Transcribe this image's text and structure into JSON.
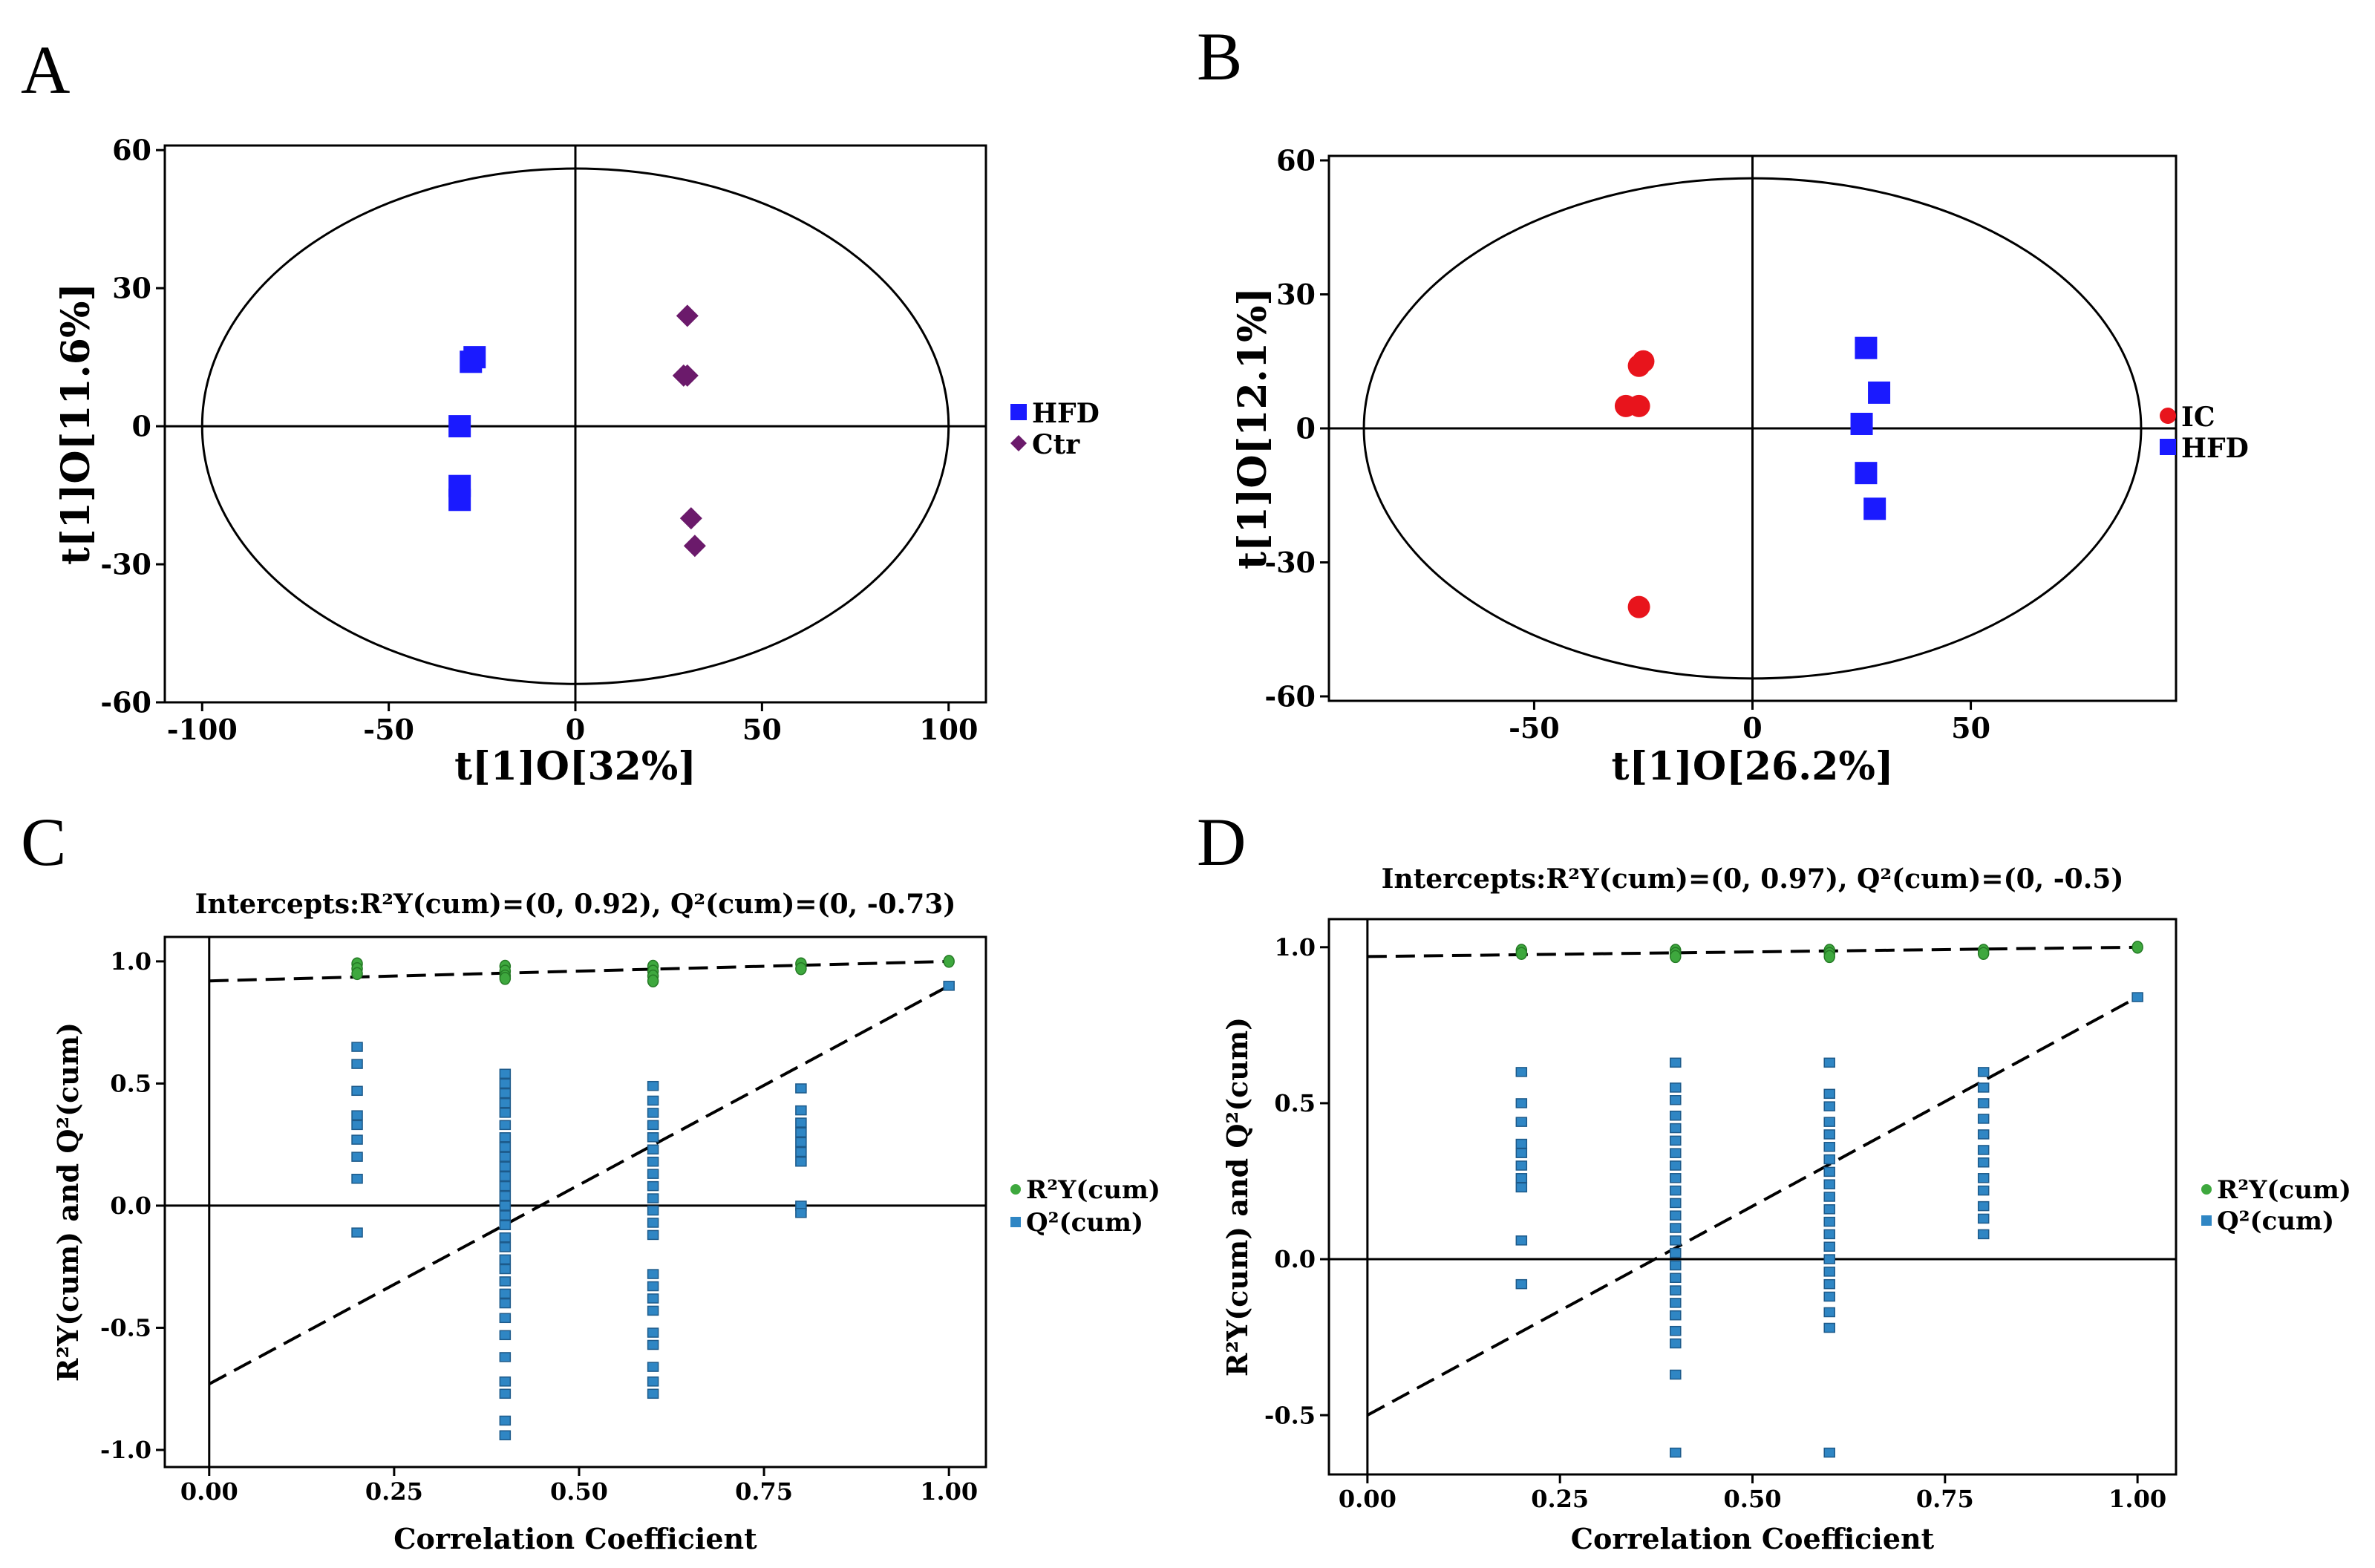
{
  "panels": {
    "A": "A",
    "B": "B",
    "C": "C",
    "D": "D"
  },
  "colors": {
    "hfd": "#1a1aff",
    "ctr": "#6b1a6b",
    "ic": "#e8141c",
    "r2": "#3ea83e",
    "q2": "#2f86c4",
    "axis": "#000000"
  },
  "chart_data": [
    {
      "id": "A",
      "type": "scatter",
      "title": "",
      "xlabel": "t[1]O[32%]",
      "ylabel": "t[1]O[11.6%]",
      "xlim": [
        -110,
        110
      ],
      "ylim": [
        -60,
        61
      ],
      "xticks": [
        -100,
        -50,
        0,
        50,
        100
      ],
      "yticks": [
        -60,
        -30,
        0,
        30,
        60
      ],
      "xtick_labels": [
        "-100",
        "-50",
        "0",
        "50",
        "100"
      ],
      "ytick_labels": [
        "-60",
        "-30",
        "0",
        "30",
        "60"
      ],
      "ellipse": {
        "rx": 100,
        "ry": 56
      },
      "legend": "right",
      "series": [
        {
          "name": "HFD",
          "marker": "square",
          "color": "#1a1aff",
          "points": [
            [
              -28,
              14
            ],
            [
              -27,
              15
            ],
            [
              -31,
              0
            ],
            [
              -31,
              -13
            ],
            [
              -31,
              -16
            ]
          ]
        },
        {
          "name": "Ctr",
          "marker": "diamond",
          "color": "#6b1a6b",
          "points": [
            [
              30,
              24
            ],
            [
              29,
              11
            ],
            [
              30,
              11
            ],
            [
              31,
              -20
            ],
            [
              32,
              -26
            ]
          ]
        }
      ]
    },
    {
      "id": "B",
      "type": "scatter",
      "title": "",
      "xlabel": "t[1]O[26.2%]",
      "ylabel": "t[1]O[12.1%]",
      "xlim": [
        -97,
        97
      ],
      "ylim": [
        -61,
        61
      ],
      "xticks": [
        -50,
        0,
        50
      ],
      "yticks": [
        -60,
        -30,
        0,
        30,
        60
      ],
      "xtick_labels": [
        "-50",
        "0",
        "50"
      ],
      "ytick_labels": [
        "-60",
        "-30",
        "0",
        "30",
        "60"
      ],
      "ellipse": {
        "rx": 89,
        "ry": 56
      },
      "legend": "right",
      "series": [
        {
          "name": "IC",
          "marker": "circle",
          "color": "#e8141c",
          "points": [
            [
              -26,
              14
            ],
            [
              -25,
              15
            ],
            [
              -29,
              5
            ],
            [
              -26,
              5
            ],
            [
              -26,
              -40
            ]
          ]
        },
        {
          "name": "HFD",
          "marker": "square",
          "color": "#1a1aff",
          "points": [
            [
              26,
              18
            ],
            [
              29,
              8
            ],
            [
              25,
              1
            ],
            [
              26,
              -10
            ],
            [
              28,
              -18
            ]
          ]
        }
      ]
    },
    {
      "id": "C",
      "type": "scatter",
      "title": "Intercepts:R²Y(cum)=(0, 0.92), Q²(cum)=(0, -0.73)",
      "xlabel": "Correlation Coefficient",
      "ylabel": "R²Y(cum) and Q²(cum)",
      "xlim": [
        -0.06,
        1.05
      ],
      "ylim": [
        -1.07,
        1.1
      ],
      "xticks": [
        0,
        0.25,
        0.5,
        0.75,
        1.0
      ],
      "yticks": [
        -1.0,
        -0.5,
        0.0,
        0.5,
        1.0
      ],
      "xtick_labels": [
        "0.00",
        "0.25",
        "0.50",
        "0.75",
        "1.00"
      ],
      "ytick_labels": [
        "-1.0",
        "-0.5",
        "0.0",
        "0.5",
        "1.0"
      ],
      "legend": "right",
      "r2_line": {
        "intercept": 0.92,
        "end": 1.0
      },
      "q2_line": {
        "intercept": -0.73,
        "end": 0.9
      },
      "series": [
        {
          "name": "R²Y(cum)",
          "marker": "circle",
          "color": "#3ea83e",
          "points": [
            [
              0.2,
              0.99
            ],
            [
              0.2,
              0.97
            ],
            [
              0.2,
              0.95
            ],
            [
              0.4,
              0.98
            ],
            [
              0.4,
              0.96
            ],
            [
              0.4,
              0.94
            ],
            [
              0.4,
              0.93
            ],
            [
              0.6,
              0.98
            ],
            [
              0.6,
              0.96
            ],
            [
              0.6,
              0.94
            ],
            [
              0.6,
              0.92
            ],
            [
              0.8,
              0.99
            ],
            [
              0.8,
              0.97
            ],
            [
              1.0,
              1.0
            ]
          ]
        },
        {
          "name": "Q²(cum)",
          "marker": "square",
          "color": "#2f86c4",
          "points": [
            [
              0.2,
              0.65
            ],
            [
              0.2,
              0.58
            ],
            [
              0.2,
              0.47
            ],
            [
              0.2,
              0.37
            ],
            [
              0.2,
              0.33
            ],
            [
              0.2,
              0.27
            ],
            [
              0.2,
              0.2
            ],
            [
              0.2,
              0.11
            ],
            [
              0.2,
              -0.11
            ],
            [
              0.4,
              0.54
            ],
            [
              0.4,
              0.5
            ],
            [
              0.4,
              0.46
            ],
            [
              0.4,
              0.42
            ],
            [
              0.4,
              0.38
            ],
            [
              0.4,
              0.33
            ],
            [
              0.4,
              0.28
            ],
            [
              0.4,
              0.24
            ],
            [
              0.4,
              0.2
            ],
            [
              0.4,
              0.16
            ],
            [
              0.4,
              0.12
            ],
            [
              0.4,
              0.08
            ],
            [
              0.4,
              0.04
            ],
            [
              0.4,
              0.0
            ],
            [
              0.4,
              -0.04
            ],
            [
              0.4,
              -0.08
            ],
            [
              0.4,
              -0.13
            ],
            [
              0.4,
              -0.17
            ],
            [
              0.4,
              -0.22
            ],
            [
              0.4,
              -0.26
            ],
            [
              0.4,
              -0.31
            ],
            [
              0.4,
              -0.36
            ],
            [
              0.4,
              -0.4
            ],
            [
              0.4,
              -0.46
            ],
            [
              0.4,
              -0.53
            ],
            [
              0.4,
              -0.62
            ],
            [
              0.4,
              -0.72
            ],
            [
              0.4,
              -0.77
            ],
            [
              0.4,
              -0.88
            ],
            [
              0.4,
              -0.94
            ],
            [
              0.6,
              0.49
            ],
            [
              0.6,
              0.43
            ],
            [
              0.6,
              0.38
            ],
            [
              0.6,
              0.33
            ],
            [
              0.6,
              0.28
            ],
            [
              0.6,
              0.23
            ],
            [
              0.6,
              0.18
            ],
            [
              0.6,
              0.13
            ],
            [
              0.6,
              0.08
            ],
            [
              0.6,
              0.03
            ],
            [
              0.6,
              -0.02
            ],
            [
              0.6,
              -0.07
            ],
            [
              0.6,
              -0.12
            ],
            [
              0.6,
              -0.28
            ],
            [
              0.6,
              -0.33
            ],
            [
              0.6,
              -0.38
            ],
            [
              0.6,
              -0.43
            ],
            [
              0.6,
              -0.52
            ],
            [
              0.6,
              -0.57
            ],
            [
              0.6,
              -0.66
            ],
            [
              0.6,
              -0.72
            ],
            [
              0.6,
              -0.77
            ],
            [
              0.8,
              0.48
            ],
            [
              0.8,
              0.39
            ],
            [
              0.8,
              0.34
            ],
            [
              0.8,
              0.3
            ],
            [
              0.8,
              0.26
            ],
            [
              0.8,
              0.22
            ],
            [
              0.8,
              0.18
            ],
            [
              0.8,
              0.0
            ],
            [
              0.8,
              -0.03
            ],
            [
              1.0,
              0.9
            ]
          ]
        }
      ]
    },
    {
      "id": "D",
      "type": "scatter",
      "title": "Intercepts:R²Y(cum)=(0, 0.97), Q²(cum)=(0, -0.5)",
      "xlabel": "Correlation Coefficient",
      "ylabel": "R²Y(cum) and Q²(cum)",
      "xlim": [
        -0.05,
        1.05
      ],
      "ylim": [
        -0.69,
        1.09
      ],
      "xticks": [
        0,
        0.25,
        0.5,
        0.75,
        1.0
      ],
      "yticks": [
        -0.5,
        0.0,
        0.5,
        1.0
      ],
      "xtick_labels": [
        "0.00",
        "0.25",
        "0.50",
        "0.75",
        "1.00"
      ],
      "ytick_labels": [
        "-0.5",
        "0.0",
        "0.5",
        "1.0"
      ],
      "legend": "right",
      "r2_line": {
        "intercept": 0.97,
        "end": 1.0
      },
      "q2_line": {
        "intercept": -0.5,
        "end": 0.84
      },
      "series": [
        {
          "name": "R²Y(cum)",
          "marker": "circle",
          "color": "#3ea83e",
          "points": [
            [
              0.2,
              0.99
            ],
            [
              0.2,
              0.98
            ],
            [
              0.4,
              0.99
            ],
            [
              0.4,
              0.98
            ],
            [
              0.4,
              0.97
            ],
            [
              0.6,
              0.99
            ],
            [
              0.6,
              0.98
            ],
            [
              0.6,
              0.97
            ],
            [
              0.8,
              0.99
            ],
            [
              0.8,
              0.98
            ],
            [
              1.0,
              1.0
            ]
          ]
        },
        {
          "name": "Q²(cum)",
          "marker": "square",
          "color": "#2f86c4",
          "points": [
            [
              0.2,
              0.6
            ],
            [
              0.2,
              0.5
            ],
            [
              0.2,
              0.44
            ],
            [
              0.2,
              0.37
            ],
            [
              0.2,
              0.34
            ],
            [
              0.2,
              0.3
            ],
            [
              0.2,
              0.26
            ],
            [
              0.2,
              0.23
            ],
            [
              0.2,
              0.06
            ],
            [
              0.2,
              -0.08
            ],
            [
              0.4,
              0.63
            ],
            [
              0.4,
              0.55
            ],
            [
              0.4,
              0.51
            ],
            [
              0.4,
              0.46
            ],
            [
              0.4,
              0.42
            ],
            [
              0.4,
              0.38
            ],
            [
              0.4,
              0.34
            ],
            [
              0.4,
              0.3
            ],
            [
              0.4,
              0.26
            ],
            [
              0.4,
              0.22
            ],
            [
              0.4,
              0.18
            ],
            [
              0.4,
              0.14
            ],
            [
              0.4,
              0.1
            ],
            [
              0.4,
              0.06
            ],
            [
              0.4,
              0.02
            ],
            [
              0.4,
              -0.02
            ],
            [
              0.4,
              -0.06
            ],
            [
              0.4,
              -0.1
            ],
            [
              0.4,
              -0.14
            ],
            [
              0.4,
              -0.18
            ],
            [
              0.4,
              -0.23
            ],
            [
              0.4,
              -0.27
            ],
            [
              0.4,
              -0.37
            ],
            [
              0.4,
              -0.62
            ],
            [
              0.6,
              0.63
            ],
            [
              0.6,
              0.53
            ],
            [
              0.6,
              0.49
            ],
            [
              0.6,
              0.44
            ],
            [
              0.6,
              0.4
            ],
            [
              0.6,
              0.36
            ],
            [
              0.6,
              0.32
            ],
            [
              0.6,
              0.28
            ],
            [
              0.6,
              0.24
            ],
            [
              0.6,
              0.2
            ],
            [
              0.6,
              0.16
            ],
            [
              0.6,
              0.12
            ],
            [
              0.6,
              0.08
            ],
            [
              0.6,
              0.04
            ],
            [
              0.6,
              0.0
            ],
            [
              0.6,
              -0.04
            ],
            [
              0.6,
              -0.08
            ],
            [
              0.6,
              -0.12
            ],
            [
              0.6,
              -0.17
            ],
            [
              0.6,
              -0.22
            ],
            [
              0.6,
              -0.62
            ],
            [
              0.8,
              0.6
            ],
            [
              0.8,
              0.55
            ],
            [
              0.8,
              0.5
            ],
            [
              0.8,
              0.45
            ],
            [
              0.8,
              0.4
            ],
            [
              0.8,
              0.35
            ],
            [
              0.8,
              0.31
            ],
            [
              0.8,
              0.26
            ],
            [
              0.8,
              0.22
            ],
            [
              0.8,
              0.17
            ],
            [
              0.8,
              0.13
            ],
            [
              0.8,
              0.08
            ],
            [
              1.0,
              0.84
            ]
          ]
        }
      ]
    }
  ]
}
